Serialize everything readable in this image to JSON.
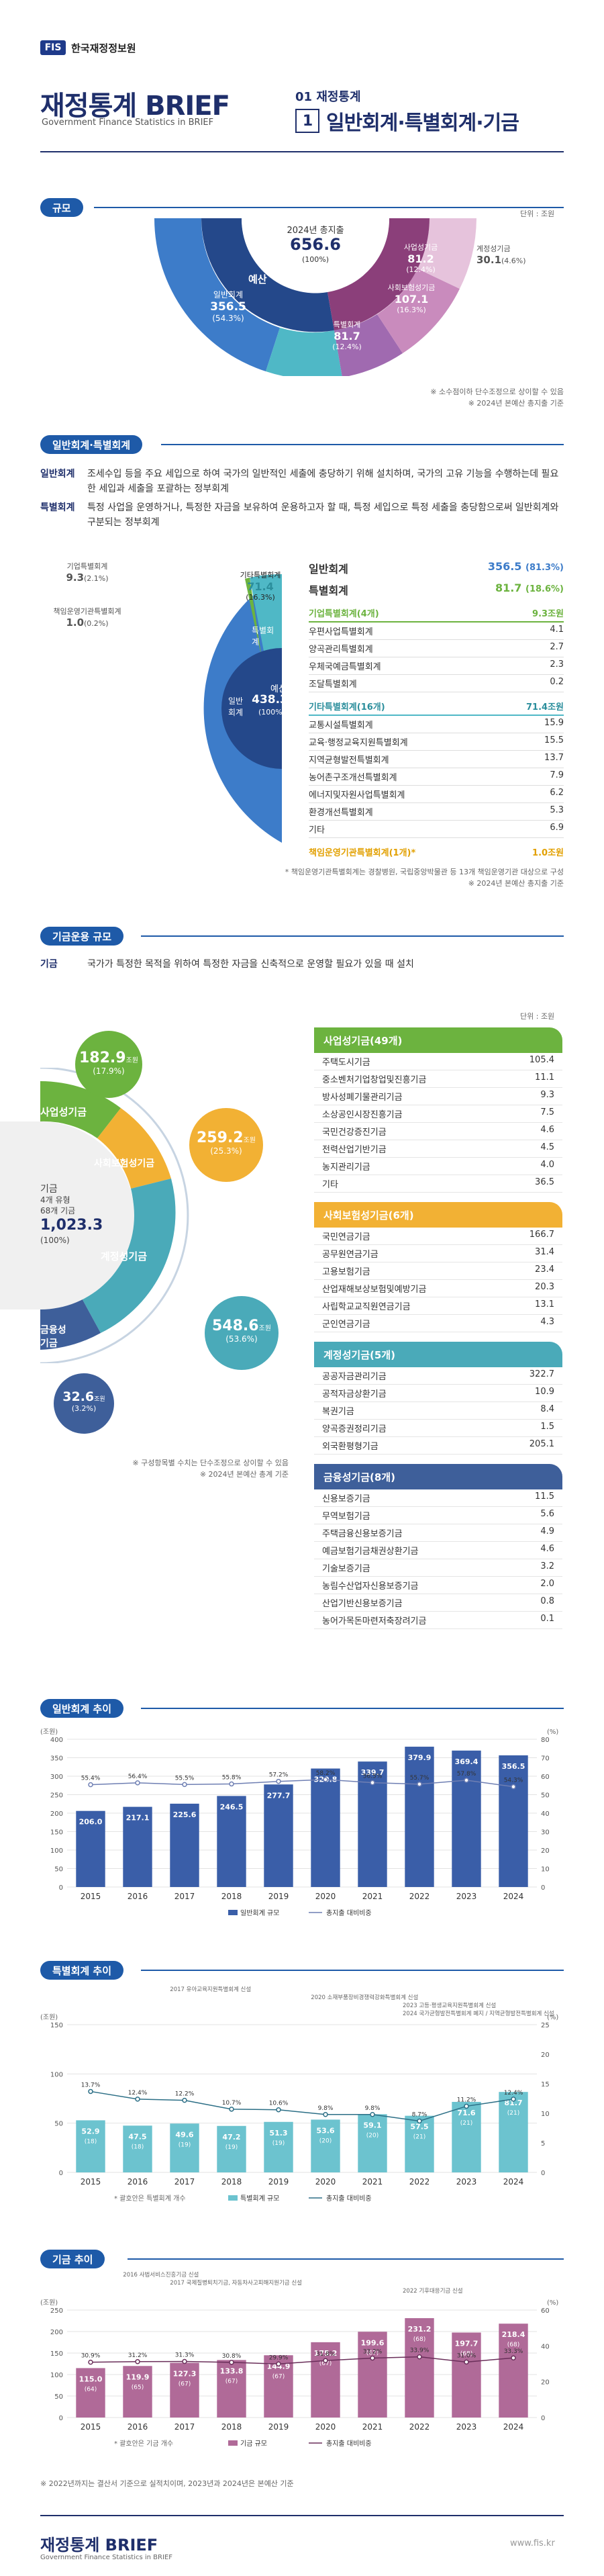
{
  "header": {
    "logo_mark": "FIS",
    "logo_text": "한국재정정보원",
    "title": "재정통계 BRIEF",
    "subtitle": "Government Finance Statistics in BRIEF",
    "section_no": "01 재정통계",
    "section_box": "1",
    "section_title": "일반회계·특별회계·기금"
  },
  "scale": {
    "label": "규모",
    "unit": "단위 : 조원",
    "center_title": "2024년 총지출",
    "center_value": "656.6",
    "center_pct": "(100%)",
    "yesan": "예산",
    "gigeum": "기금",
    "items": [
      {
        "name": "일반회계",
        "value": "356.5",
        "pct": "(54.3%)"
      },
      {
        "name": "특별회계",
        "value": "81.7",
        "pct": "(12.4%)"
      },
      {
        "name": "사업성기금",
        "value": "81.2",
        "pct": "(12.4%)"
      },
      {
        "name": "사회보험성기금",
        "value": "107.1",
        "pct": "(16.3%)"
      },
      {
        "name": "계정성기금",
        "value": "30.1",
        "pct": "(4.6%)"
      }
    ],
    "note1": "※ 소수점이하 단수조정으로 상이할 수 있음",
    "note2": "※ 2024년 본예산 총지출 기준"
  },
  "accounts": {
    "label": "일반회계·특별회계",
    "defs": [
      {
        "term": "일반회계",
        "desc": "조세수입 등을 주요 세입으로 하여 국가의 일반적인 세출에 충당하기 위해 설치하며, 국가의 고유 기능을 수행하는데 필요한 세입과 세출을 포괄하는 정부회계"
      },
      {
        "term": "특별회계",
        "desc": "특정 사업을 운영하거나, 특정한 자금을 보유하여 운용하고자 할 때, 특정 세입으로 특정 세출을 충당함으로써 일반회계와 구분되는 정부회계"
      }
    ],
    "pie": {
      "center_title": "예산",
      "center_value": "438.3",
      "center_pct": "(100%)",
      "ilban": "일반회계",
      "teukbyeol": "특별회계",
      "ilban_value": "356.5",
      "ilban_pct": "(81.3%)",
      "gitateuk": "기타특별회계",
      "gitateuk_value": "71.4",
      "gitateuk_pct": "(16.3%)",
      "gieop": "기업특별회계",
      "gieop_value": "9.3",
      "gieop_pct": "(2.1%)",
      "chaegim": "책임운영기관특별회계",
      "chaegim_value": "1.0",
      "chaegim_pct": "(0.2%)"
    },
    "summary": [
      {
        "name": "일반회계",
        "value": "356.5",
        "pct": "(81.3%)"
      },
      {
        "name": "특별회계",
        "value": "81.7",
        "pct": "(18.6%)"
      }
    ],
    "gieop_head": {
      "name": "기업특별회계(4개)",
      "value": "9.3조원"
    },
    "gieop_rows": [
      {
        "name": "우편사업특별회계",
        "value": "4.1"
      },
      {
        "name": "양곡관리특별회계",
        "value": "2.7"
      },
      {
        "name": "우체국예금특별회계",
        "value": "2.3"
      },
      {
        "name": "조달특별회계",
        "value": "0.2"
      }
    ],
    "gita_head": {
      "name": "기타특별회계(16개)",
      "value": "71.4조원"
    },
    "gita_rows": [
      {
        "name": "교통시설특별회계",
        "value": "15.9"
      },
      {
        "name": "교육·행정교육지원특별회계",
        "value": "15.5"
      },
      {
        "name": "지역균형발전특별회계",
        "value": "13.7"
      },
      {
        "name": "농어촌구조개선특별회계",
        "value": "7.9"
      },
      {
        "name": "에너지및자원사업특별회계",
        "value": "6.2"
      },
      {
        "name": "환경개선특별회계",
        "value": "5.3"
      },
      {
        "name": "기타",
        "value": "6.9"
      }
    ],
    "chaegim_head": {
      "name": "책임운영기관특별회계(1개)*",
      "value": "1.0조원"
    },
    "note1": "* 책임운영기관특별회계는 경찰병원, 국립중앙박물관 등 13개 책임운영기관 대상으로 구성",
    "note2": "※ 2024년 본예산 총지출 기준"
  },
  "funds": {
    "label": "기금운용 규모",
    "def_term": "기금",
    "def_desc": "국가가 특정한 목적을 위하여 특정한 자금을 신축적으로 운영할 필요가 있을 때 설치",
    "unit": "단위 : 조원",
    "center_title": "기금",
    "center_line2": "4개 유형",
    "center_line3": "68개 기금",
    "center_value": "1,023.3",
    "center_pct": "(100%)",
    "bubbles": [
      {
        "name": "사업성기금",
        "value": "182.9",
        "unit": "조원",
        "pct": "(17.9%)",
        "color": "#6cb33f"
      },
      {
        "name": "사회보험성기금",
        "value": "259.2",
        "unit": "조원",
        "pct": "(25.3%)",
        "color": "#f2b134"
      },
      {
        "name": "계정성기금",
        "value": "548.6",
        "unit": "조원",
        "pct": "(53.6%)",
        "color": "#4aaab9"
      },
      {
        "name": "금융성기금",
        "value": "32.6",
        "unit": "조원",
        "pct": "(3.2%)",
        "color": "#3e5f9a"
      }
    ],
    "note1": "※ 구성항목별 수치는 단수조정으로 상이할 수 있음",
    "note2": "※ 2024년 본예산 총계 기준",
    "groups": [
      {
        "title": "사업성기금(49개)",
        "color": "#6cb33f",
        "rows": [
          {
            "name": "주택도시기금",
            "value": "105.4"
          },
          {
            "name": "중소벤처기업창업및진흥기금",
            "value": "11.1"
          },
          {
            "name": "방사성폐기물관리기금",
            "value": "9.3"
          },
          {
            "name": "소상공인시장진흥기금",
            "value": "7.5"
          },
          {
            "name": "국민건강증진기금",
            "value": "4.6"
          },
          {
            "name": "전력산업기반기금",
            "value": "4.5"
          },
          {
            "name": "농지관리기금",
            "value": "4.0"
          },
          {
            "name": "기타",
            "value": "36.5"
          }
        ]
      },
      {
        "title": "사회보험성기금(6개)",
        "color": "#f2b134",
        "rows": [
          {
            "name": "국민연금기금",
            "value": "166.7"
          },
          {
            "name": "공무원연금기금",
            "value": "31.4"
          },
          {
            "name": "고용보험기금",
            "value": "23.4"
          },
          {
            "name": "산업재해보상보험및예방기금",
            "value": "20.3"
          },
          {
            "name": "사립학교교직원연금기금",
            "value": "13.1"
          },
          {
            "name": "군인연금기금",
            "value": "4.3"
          }
        ]
      },
      {
        "title": "계정성기금(5개)",
        "color": "#4aaab9",
        "rows": [
          {
            "name": "공공자금관리기금",
            "value": "322.7"
          },
          {
            "name": "공적자금상환기금",
            "value": "10.9"
          },
          {
            "name": "복권기금",
            "value": "8.4"
          },
          {
            "name": "양곡증권정리기금",
            "value": "1.5"
          },
          {
            "name": "외국환평형기금",
            "value": "205.1"
          }
        ]
      },
      {
        "title": "금융성기금(8개)",
        "color": "#3e5f9a",
        "rows": [
          {
            "name": "신용보증기금",
            "value": "11.5"
          },
          {
            "name": "무역보험기금",
            "value": "5.6"
          },
          {
            "name": "주택금융신용보증기금",
            "value": "4.9"
          },
          {
            "name": "예금보험기금채권상환기금",
            "value": "4.6"
          },
          {
            "name": "기술보증기금",
            "value": "3.2"
          },
          {
            "name": "농림수산업자신용보증기금",
            "value": "2.0"
          },
          {
            "name": "산업기반신용보증기금",
            "value": "0.8"
          },
          {
            "name": "농어가목돈마련저축장려기금",
            "value": "0.1"
          }
        ]
      }
    ]
  },
  "chart_data": [
    {
      "type": "bar",
      "title": "일반회계 추이",
      "y_unit": "(조원)",
      "y2_unit": "(%)",
      "categories": [
        "2015",
        "2016",
        "2017",
        "2018",
        "2019",
        "2020",
        "2021",
        "2022",
        "2023",
        "2024"
      ],
      "series": [
        {
          "name": "일반회계 규모",
          "values": [
            206.0,
            217.1,
            225.6,
            246.5,
            277.7,
            320.8,
            339.7,
            379.9,
            369.4,
            356.5
          ]
        },
        {
          "name": "총지출 대비비중",
          "values": [
            55.4,
            56.4,
            55.5,
            55.8,
            57.2,
            58.2,
            56.5,
            55.7,
            57.8,
            54.3
          ]
        }
      ],
      "ylim": [
        0,
        400
      ],
      "y2lim": [
        0,
        80
      ],
      "yticks": [
        0,
        50,
        100,
        150,
        200,
        250,
        300,
        350,
        400
      ],
      "y2ticks": [
        0,
        10,
        20,
        30,
        40,
        50,
        60,
        70,
        80
      ]
    },
    {
      "type": "bar",
      "title": "특별회계 추이",
      "y_unit": "(조원)",
      "y2_unit": "(%)",
      "categories": [
        "2015",
        "2016",
        "2017",
        "2018",
        "2019",
        "2020",
        "2021",
        "2022",
        "2023",
        "2024"
      ],
      "series": [
        {
          "name": "특별회계 규모",
          "values": [
            52.9,
            47.5,
            49.6,
            47.2,
            51.3,
            53.6,
            59.1,
            57.5,
            71.6,
            81.7
          ]
        },
        {
          "name": "총지출 대비비중",
          "values": [
            13.7,
            12.4,
            12.2,
            10.7,
            10.6,
            9.8,
            9.8,
            8.7,
            11.2,
            12.4
          ]
        },
        {
          "name": "특별회계 개수",
          "values": [
            18,
            18,
            19,
            19,
            19,
            20,
            20,
            21,
            21,
            21
          ]
        }
      ],
      "count_labels": [
        "(18)",
        "(18)",
        "(19)",
        "(19)",
        "(19)",
        "(20)",
        "(20)",
        "(21)",
        "(21)",
        "(21)"
      ],
      "ylim": [
        0,
        150
      ],
      "y2lim": [
        0,
        25
      ],
      "yticks": [
        0,
        50,
        100,
        150
      ],
      "y2ticks": [
        0,
        5,
        10,
        15,
        20,
        25
      ],
      "annotations": [
        {
          "year": "2017",
          "text": "유아교육지원특별회계 신설"
        },
        {
          "year": "2020",
          "text": "소재부품장비경쟁력강화특별회계 신설"
        },
        {
          "year": "2023",
          "text": "고등·평생교육지원특별회계 신설"
        },
        {
          "year": "2024",
          "text": "국가균형발전특별회계 폐지 / 지역균형발전특별회계 신설"
        }
      ],
      "footnote": "* 괄호안은 특별회계 개수"
    },
    {
      "type": "bar",
      "title": "기금 추이",
      "y_unit": "(조원)",
      "y2_unit": "(%)",
      "categories": [
        "2015",
        "2016",
        "2017",
        "2018",
        "2019",
        "2020",
        "2021",
        "2022",
        "2023",
        "2024"
      ],
      "series": [
        {
          "name": "기금 규모",
          "values": [
            115.0,
            119.9,
            127.3,
            133.8,
            144.9,
            175.2,
            199.6,
            231.2,
            197.7,
            218.4
          ]
        },
        {
          "name": "총지출 대비비중",
          "values": [
            30.9,
            31.2,
            31.3,
            30.8,
            29.9,
            31.8,
            33.2,
            33.9,
            31.0,
            33.3
          ]
        },
        {
          "name": "운용 기금 개수",
          "values": [
            64,
            65,
            67,
            67,
            67,
            67,
            67,
            68,
            68,
            68
          ]
        }
      ],
      "count_labels": [
        "(64)",
        "(65)",
        "(67)",
        "(67)",
        "(67)",
        "(67)",
        "(67)",
        "(68)",
        "(68)",
        "(68)"
      ],
      "ylim": [
        0,
        250
      ],
      "y2lim": [
        0,
        60
      ],
      "yticks": [
        0,
        50,
        100,
        150,
        200,
        250
      ],
      "y2ticks": [
        0,
        20,
        40,
        60
      ],
      "annotations": [
        {
          "year": "2016",
          "text": "사법서비스진흥기금 신설"
        },
        {
          "year": "2017",
          "text": "국제질병퇴치기금, 자동차사고피해지원기금 신설"
        },
        {
          "year": "2022",
          "text": "기후대응기금 신설"
        }
      ],
      "footnote": "* 괄호안은 기금 개수"
    }
  ],
  "final_note": "※ 2022년까지는 결산서 기준으로 실적치이며, 2023년과 2024년은 본예산 기준",
  "footer": {
    "brand": "재정통계 BRIEF",
    "brand_sub": "Government Finance Statistics in BRIEF",
    "url": "www.fis.kr"
  },
  "colors": {
    "navy": "#1f2f6b",
    "ilban_blue": "#3d7cc9",
    "teuk_teal": "#4fb8c6",
    "gigeum_pink": "#b05a93",
    "bar_line": "#3a5ea8"
  }
}
